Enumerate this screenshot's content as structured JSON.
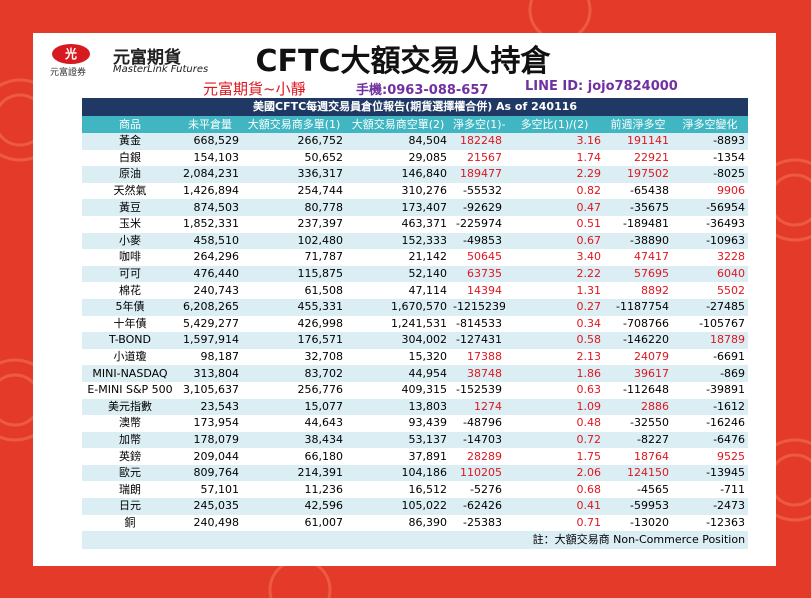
{
  "header": {
    "logo_mark": "光",
    "logo_sub": "元富證券",
    "brand": "元富期貨",
    "brand_en": "MasterLink Futures",
    "title": "CFTC大額交易人持倉"
  },
  "contact": {
    "name": "元富期貨~小靜",
    "phone": "手機:0963-088-657",
    "line": "LINE ID: jojo7824000"
  },
  "table": {
    "caption": "美國CFTC每週交易員倉位報告(期貨選擇權合併) As of  240116",
    "columns": [
      "商品",
      "未平倉量",
      "大額交易商多單(1)",
      "大額交易商空單(2)",
      "淨多空(1)-(2)",
      "多空比(1)/(2)",
      "前週淨多空",
      "淨多空變化"
    ],
    "rows": [
      [
        "黃金",
        "668,529",
        "266,752",
        "84,504",
        "182248",
        "3.16",
        "191141",
        "-8893"
      ],
      [
        "白銀",
        "154,103",
        "50,652",
        "29,085",
        "21567",
        "1.74",
        "22921",
        "-1354"
      ],
      [
        "原油",
        "2,084,231",
        "336,317",
        "146,840",
        "189477",
        "2.29",
        "197502",
        "-8025"
      ],
      [
        "天然氣",
        "1,426,894",
        "254,744",
        "310,276",
        "-55532",
        "0.82",
        "-65438",
        "9906"
      ],
      [
        "黃豆",
        "874,503",
        "80,778",
        "173,407",
        "-92629",
        "0.47",
        "-35675",
        "-56954"
      ],
      [
        "玉米",
        "1,852,331",
        "237,397",
        "463,371",
        "-225974",
        "0.51",
        "-189481",
        "-36493"
      ],
      [
        "小麥",
        "458,510",
        "102,480",
        "152,333",
        "-49853",
        "0.67",
        "-38890",
        "-10963"
      ],
      [
        "咖啡",
        "264,296",
        "71,787",
        "21,142",
        "50645",
        "3.40",
        "47417",
        "3228"
      ],
      [
        "可可",
        "476,440",
        "115,875",
        "52,140",
        "63735",
        "2.22",
        "57695",
        "6040"
      ],
      [
        "棉花",
        "240,743",
        "61,508",
        "47,114",
        "14394",
        "1.31",
        "8892",
        "5502"
      ],
      [
        "5年債",
        "6,208,265",
        "455,331",
        "1,670,570",
        "-1215239",
        "0.27",
        "-1187754",
        "-27485"
      ],
      [
        "十年債",
        "5,429,277",
        "426,998",
        "1,241,531",
        "-814533",
        "0.34",
        "-708766",
        "-105767"
      ],
      [
        "T-BOND",
        "1,597,914",
        "176,571",
        "304,002",
        "-127431",
        "0.58",
        "-146220",
        "18789"
      ],
      [
        "小道瓊",
        "98,187",
        "32,708",
        "15,320",
        "17388",
        "2.13",
        "24079",
        "-6691"
      ],
      [
        "MINI-NASDAQ",
        "313,804",
        "83,702",
        "44,954",
        "38748",
        "1.86",
        "39617",
        "-869"
      ],
      [
        "E-MINI S&P 500",
        "3,105,637",
        "256,776",
        "409,315",
        "-152539",
        "0.63",
        "-112648",
        "-39891"
      ],
      [
        "美元指數",
        "23,543",
        "15,077",
        "13,803",
        "1274",
        "1.09",
        "2886",
        "-1612"
      ],
      [
        "澳幣",
        "173,954",
        "44,643",
        "93,439",
        "-48796",
        "0.48",
        "-32550",
        "-16246"
      ],
      [
        "加幣",
        "178,079",
        "38,434",
        "53,137",
        "-14703",
        "0.72",
        "-8227",
        "-6476"
      ],
      [
        "英鎊",
        "209,044",
        "66,180",
        "37,891",
        "28289",
        "1.75",
        "18764",
        "9525"
      ],
      [
        "歐元",
        "809,764",
        "214,391",
        "104,186",
        "110205",
        "2.06",
        "124150",
        "-13945"
      ],
      [
        "瑞朗",
        "57,101",
        "11,236",
        "16,512",
        "-5276",
        "0.68",
        "-4565",
        "-711"
      ],
      [
        "日元",
        "245,035",
        "42,596",
        "105,022",
        "-62426",
        "0.41",
        "-59953",
        "-2473"
      ],
      [
        "銅",
        "240,498",
        "61,007",
        "86,390",
        "-25383",
        "0.71",
        "-13020",
        "-12363"
      ]
    ],
    "note": "註：大額交易商 Non-Commerce Position"
  }
}
